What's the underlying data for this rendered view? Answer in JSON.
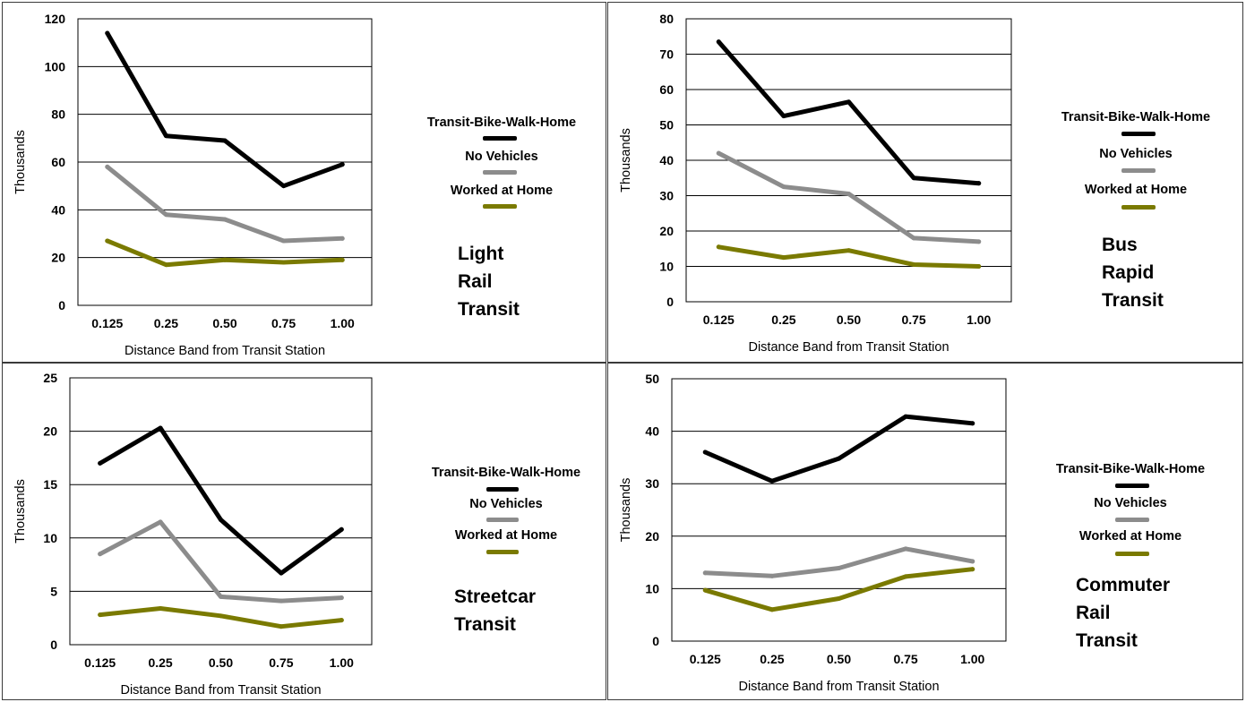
{
  "colors": {
    "transit_bike_walk_home": "#000000",
    "no_vehicles": "#8c8c8c",
    "worked_at_home": "#7a7a00",
    "gridline": "#000000",
    "border": "#3a3a3a"
  },
  "chart_data": [
    {
      "type": "line",
      "title": "",
      "mode_label": [
        "Light",
        "Rail",
        "Transit"
      ],
      "xlabel": "Distance Band from Transit Station",
      "ylabel": "Thousands",
      "categories": [
        "0.125",
        "0.25",
        "0.50",
        "0.75",
        "1.00"
      ],
      "ylim": [
        0,
        120
      ],
      "yticks": [
        "0",
        "20",
        "40",
        "60",
        "80",
        "100",
        "120"
      ],
      "grid": true,
      "legend_position": "right",
      "series": [
        {
          "name": "Transit-Bike-Walk-Home",
          "values": [
            114,
            71,
            69,
            50,
            59
          ]
        },
        {
          "name": "No Vehicles",
          "values": [
            58,
            38,
            36,
            27,
            28
          ]
        },
        {
          "name": "Worked at Home",
          "values": [
            27,
            17,
            19,
            18,
            19
          ]
        }
      ]
    },
    {
      "type": "line",
      "title": "",
      "mode_label": [
        "Bus",
        "Rapid",
        "Transit"
      ],
      "xlabel": "Distance Band from Transit Station",
      "ylabel": "Thousands",
      "categories": [
        "0.125",
        "0.25",
        "0.50",
        "0.75",
        "1.00"
      ],
      "ylim": [
        0,
        80
      ],
      "yticks": [
        "0",
        "10",
        "20",
        "30",
        "40",
        "50",
        "60",
        "70",
        "80"
      ],
      "grid": true,
      "legend_position": "right",
      "series": [
        {
          "name": "Transit-Bike-Walk-Home",
          "values": [
            73.5,
            52.5,
            56.5,
            35,
            33.5
          ]
        },
        {
          "name": "No Vehicles",
          "values": [
            42,
            32.5,
            30.5,
            18,
            17
          ]
        },
        {
          "name": "Worked at Home",
          "values": [
            15.5,
            12.5,
            14.5,
            10.5,
            10
          ]
        }
      ]
    },
    {
      "type": "line",
      "title": "",
      "mode_label": [
        "Streetcar",
        "Transit"
      ],
      "xlabel": "Distance Band from Transit Station",
      "ylabel": "Thousands",
      "categories": [
        "0.125",
        "0.25",
        "0.50",
        "0.75",
        "1.00"
      ],
      "ylim": [
        0,
        25
      ],
      "yticks": [
        "0",
        "5",
        "10",
        "15",
        "20",
        "25"
      ],
      "grid": true,
      "legend_position": "right",
      "series": [
        {
          "name": "Transit-Bike-Walk-Home",
          "values": [
            17,
            20.3,
            11.7,
            6.7,
            10.8
          ]
        },
        {
          "name": "No Vehicles",
          "values": [
            8.5,
            11.5,
            4.5,
            4.1,
            4.4
          ]
        },
        {
          "name": "Worked at Home",
          "values": [
            2.8,
            3.4,
            2.7,
            1.7,
            2.3
          ]
        }
      ]
    },
    {
      "type": "line",
      "title": "",
      "mode_label": [
        "Commuter",
        "Rail",
        "Transit"
      ],
      "xlabel": "Distance Band from Transit Station",
      "ylabel": "Thousands",
      "categories": [
        "0.125",
        "0.25",
        "0.50",
        "0.75",
        "1.00"
      ],
      "ylim": [
        0,
        50
      ],
      "yticks": [
        "0",
        "10",
        "20",
        "30",
        "40",
        "50"
      ],
      "grid": true,
      "legend_position": "right",
      "series": [
        {
          "name": "Transit-Bike-Walk-Home",
          "values": [
            36,
            30.5,
            34.8,
            42.8,
            41.5
          ]
        },
        {
          "name": "No Vehicles",
          "values": [
            13,
            12.4,
            13.9,
            17.6,
            15.2
          ]
        },
        {
          "name": "Worked at Home",
          "values": [
            9.7,
            6,
            8.1,
            12.3,
            13.7
          ]
        }
      ]
    }
  ]
}
